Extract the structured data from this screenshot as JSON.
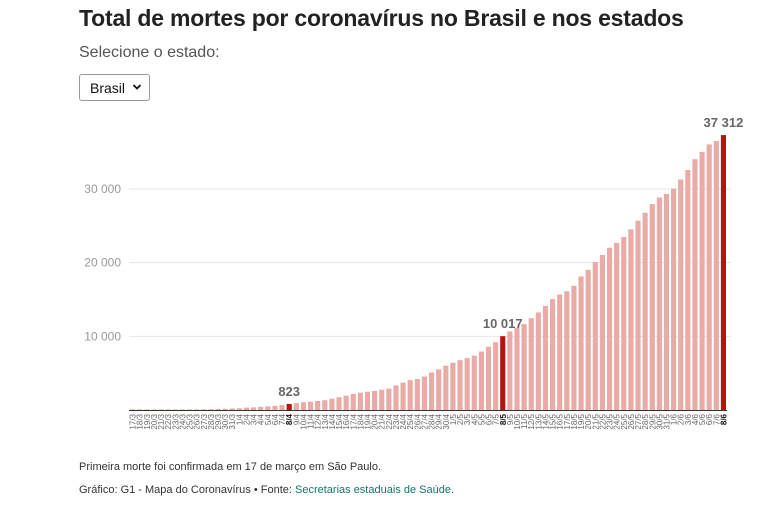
{
  "header": {
    "title": "Total de mortes por coronavírus no Brasil e nos estados",
    "select_label": "Selecione o estado:",
    "select_value": "Brasil"
  },
  "footer": {
    "note": "Primeira morte foi confirmada em 17 de março em São Paulo.",
    "credit": "Gráfico: G1 - Mapa do Coronavírus • Fonte: ",
    "source_link": "Secretarias estaduais de Saúde",
    "source_end": "."
  },
  "colors": {
    "bar": "#e8aba5",
    "highlight": "#b5150c",
    "grid": "#e6e6e6",
    "axis": "#333333",
    "tick_text": "#9a9a9a",
    "value_label": "#666666"
  },
  "chart_data": {
    "type": "bar",
    "title": "Total de mortes por coronavírus no Brasil e nos estados",
    "xlabel": "",
    "ylabel": "",
    "ylim": [
      0,
      38000
    ],
    "yticks": [
      10000,
      20000,
      30000
    ],
    "ytick_labels": [
      "10 000",
      "20 000",
      "30 000"
    ],
    "grid": true,
    "categories": [
      "17/3",
      "18/3",
      "19/3",
      "20/3",
      "21/3",
      "22/3",
      "23/3",
      "24/3",
      "25/3",
      "26/3",
      "27/3",
      "28/3",
      "29/3",
      "30/3",
      "31/3",
      "1/4",
      "2/4",
      "3/4",
      "4/4",
      "5/4",
      "6/4",
      "7/4",
      "8/4",
      "9/4",
      "10/4",
      "11/4",
      "12/4",
      "13/4",
      "14/4",
      "15/4",
      "16/4",
      "17/4",
      "18/4",
      "19/4",
      "20/4",
      "21/4",
      "22/4",
      "23/4",
      "24/4",
      "25/4",
      "26/4",
      "27/4",
      "28/4",
      "29/4",
      "30/4",
      "1/5",
      "2/5",
      "3/5",
      "4/5",
      "5/5",
      "6/5",
      "7/5",
      "8/5",
      "9/5",
      "10/5",
      "11/5",
      "12/5",
      "13/5",
      "14/5",
      "15/5",
      "16/5",
      "17/5",
      "18/5",
      "19/5",
      "20/5",
      "21/5",
      "22/5",
      "23/5",
      "24/5",
      "25/5",
      "26/5",
      "27/5",
      "28/5",
      "29/5",
      "30/5",
      "31/5",
      "1/6",
      "2/6",
      "3/6",
      "4/6",
      "5/6",
      "6/6",
      "7/6",
      "8/6"
    ],
    "values": [
      1,
      4,
      7,
      11,
      18,
      25,
      34,
      46,
      59,
      77,
      92,
      111,
      136,
      159,
      201,
      240,
      324,
      359,
      432,
      486,
      553,
      667,
      823,
      941,
      1057,
      1124,
      1223,
      1328,
      1532,
      1736,
      1947,
      2171,
      2361,
      2484,
      2588,
      2761,
      2906,
      3331,
      3704,
      4057,
      4205,
      4543,
      5083,
      5513,
      6006,
      6412,
      6761,
      7051,
      7367,
      7938,
      8588,
      9190,
      10017,
      10656,
      11123,
      11653,
      12461,
      13240,
      14131,
      15046,
      15662,
      16118,
      16853,
      18130,
      19021,
      20082,
      21048,
      22013,
      22666,
      23473,
      24512,
      25697,
      26764,
      27944,
      28834,
      29314,
      30046,
      31278,
      32568,
      34039,
      35026,
      36044,
      36499,
      37312
    ],
    "highlighted": [
      {
        "category": "8/4",
        "label": "823"
      },
      {
        "category": "8/5",
        "label": "10 017"
      },
      {
        "category": "8/6",
        "label": "37 312"
      }
    ]
  }
}
